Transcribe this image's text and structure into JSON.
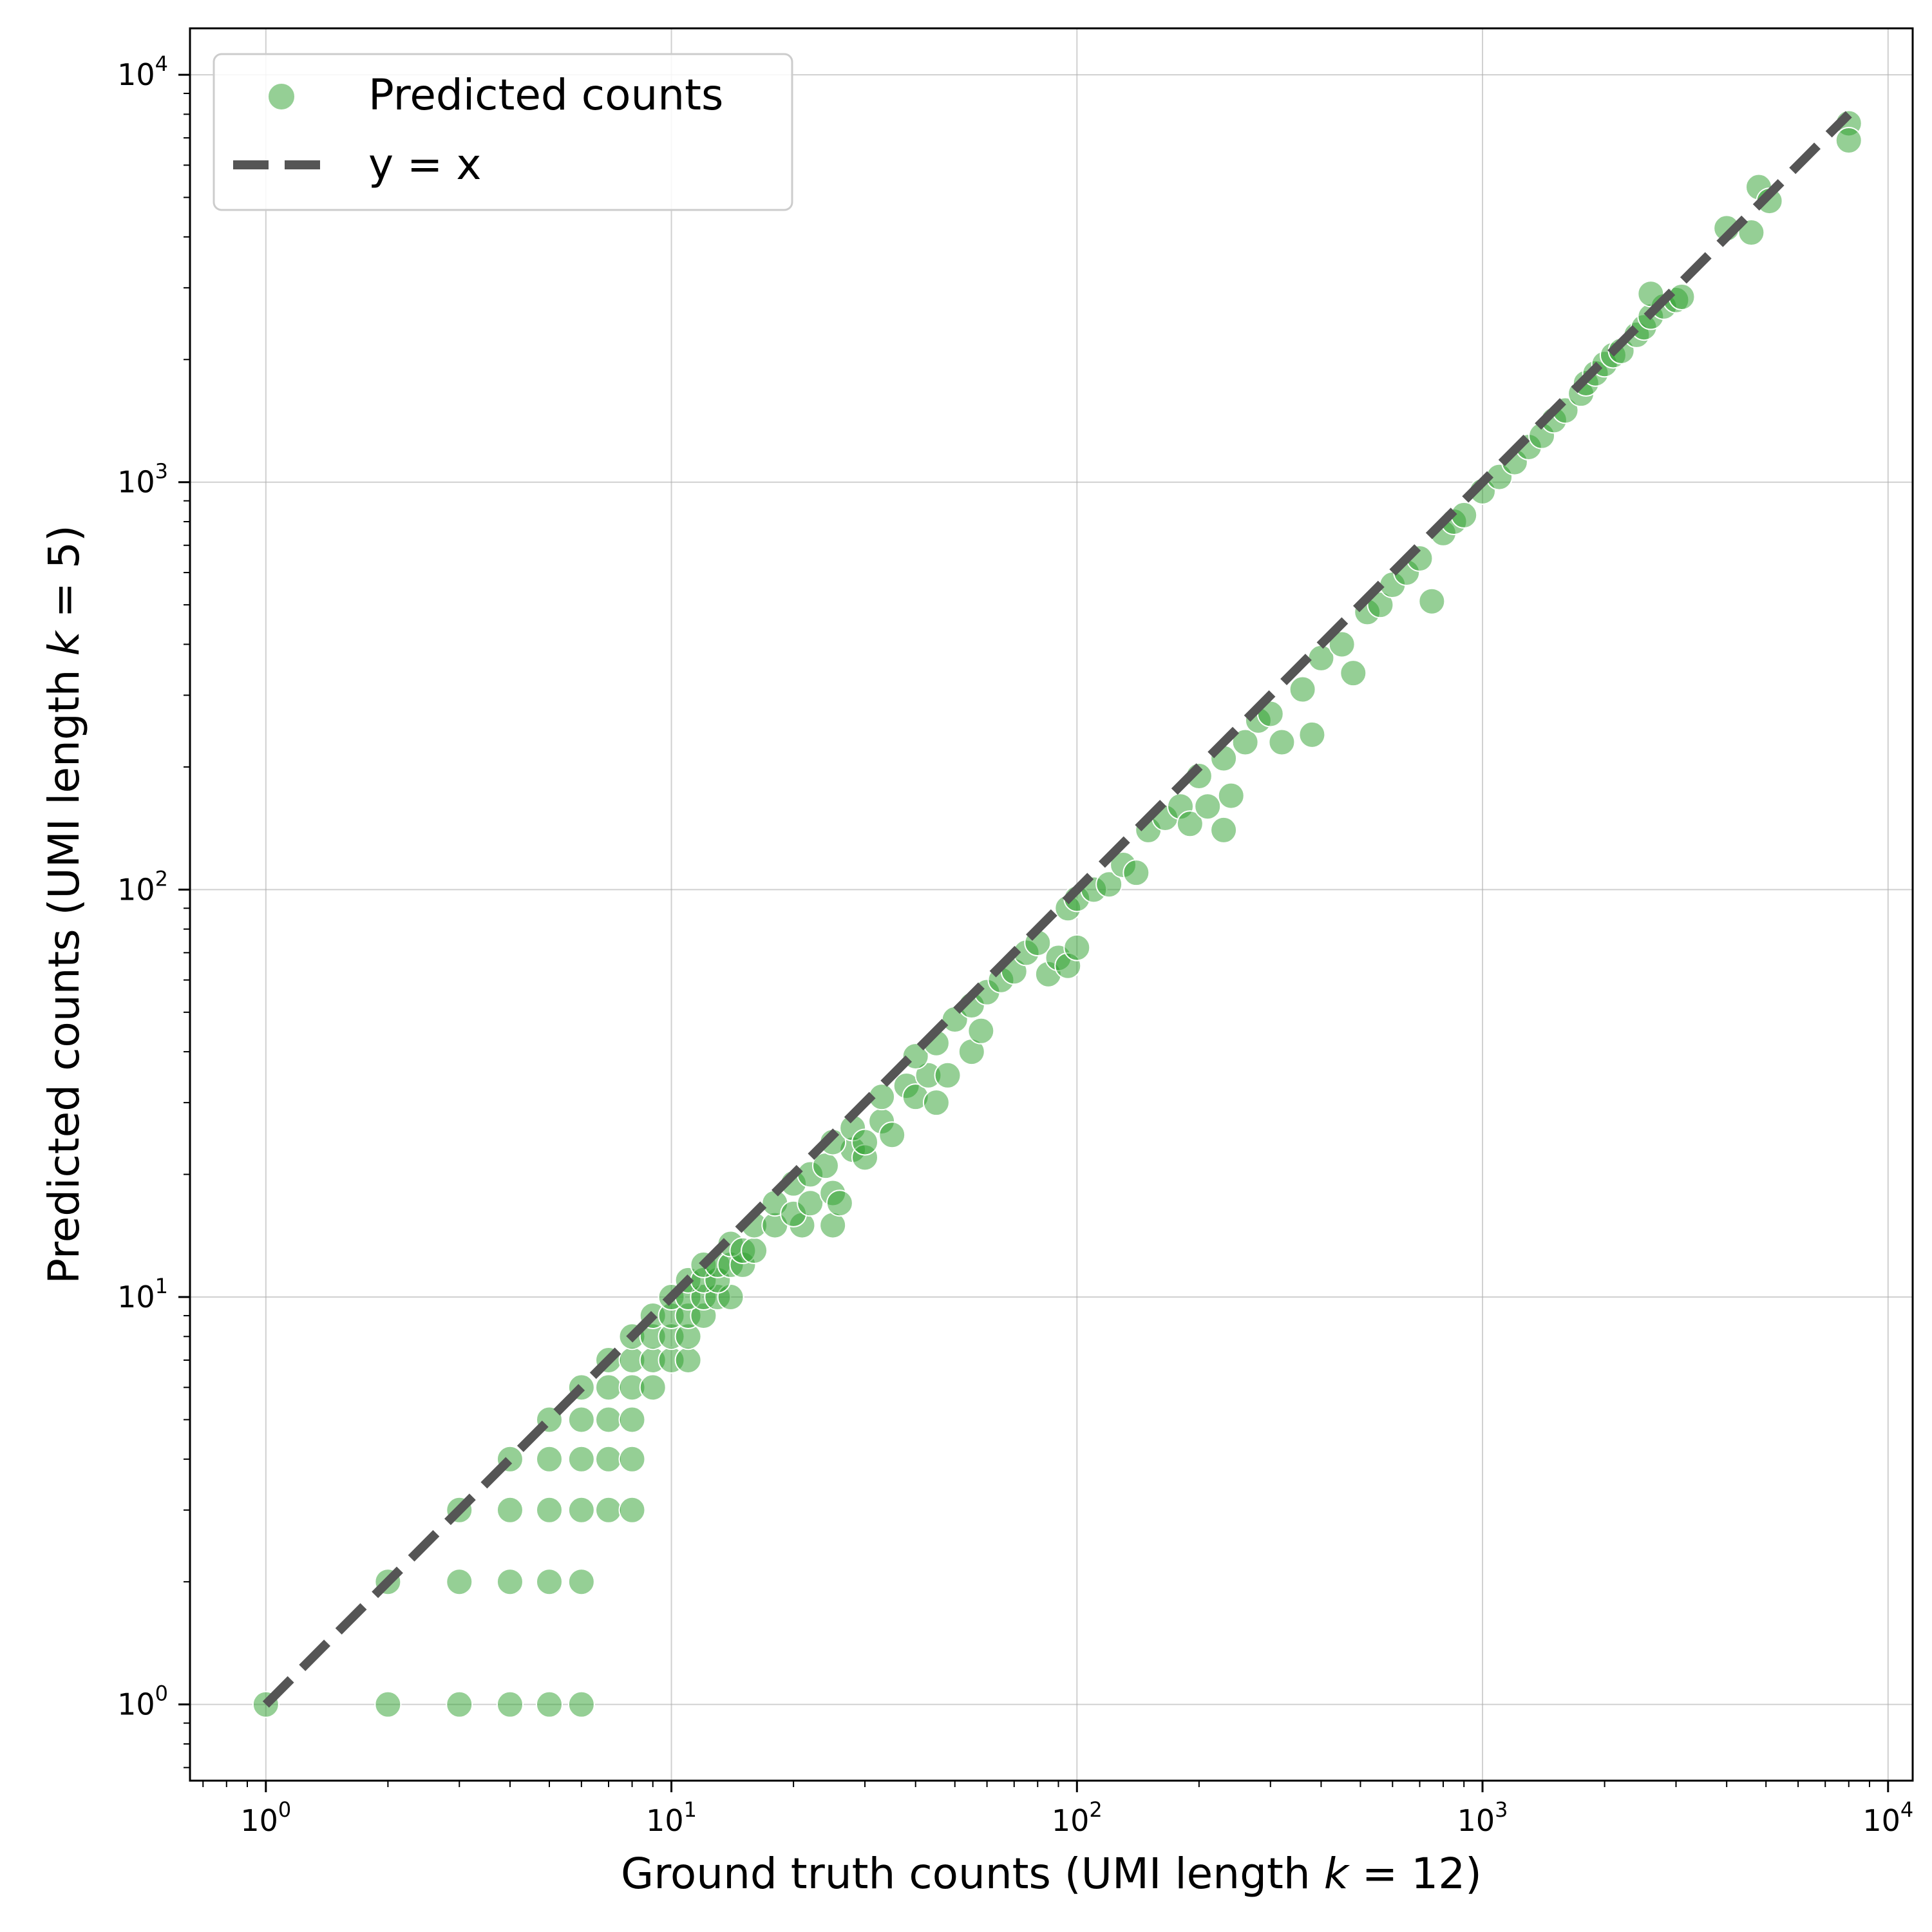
{
  "chart_data": {
    "type": "scatter",
    "title": "",
    "xlabel_prefix": "Ground truth counts (UMI length ",
    "xlabel_var": "k",
    "xlabel_suffix": " = 12)",
    "ylabel_prefix": "Predicted counts (UMI length ",
    "ylabel_var": "k",
    "ylabel_suffix": " = 5)",
    "x_scale": "log",
    "y_scale": "log",
    "xlim": [
      0.65,
      11500
    ],
    "ylim": [
      0.65,
      13000
    ],
    "grid": true,
    "legend_position": "top-left",
    "colors": {
      "points": "#2ca02c",
      "line": "#555555",
      "grid": "#b0b0b0"
    },
    "x_ticks": [
      {
        "base": "10",
        "exp": "0"
      },
      {
        "base": "10",
        "exp": "1"
      },
      {
        "base": "10",
        "exp": "2"
      },
      {
        "base": "10",
        "exp": "3"
      },
      {
        "base": "10",
        "exp": "4"
      }
    ],
    "y_ticks": [
      {
        "base": "10",
        "exp": "0"
      },
      {
        "base": "10",
        "exp": "1"
      },
      {
        "base": "10",
        "exp": "2"
      },
      {
        "base": "10",
        "exp": "3"
      },
      {
        "base": "10",
        "exp": "4"
      }
    ],
    "series": [
      {
        "name": "Predicted counts",
        "kind": "scatter",
        "points": [
          [
            1,
            1
          ],
          [
            2,
            1
          ],
          [
            3,
            1
          ],
          [
            4,
            1
          ],
          [
            5,
            1
          ],
          [
            6,
            1
          ],
          [
            2,
            2
          ],
          [
            3,
            2
          ],
          [
            4,
            2
          ],
          [
            5,
            2
          ],
          [
            6,
            2
          ],
          [
            3,
            3
          ],
          [
            4,
            3
          ],
          [
            5,
            3
          ],
          [
            6,
            3
          ],
          [
            7,
            3
          ],
          [
            8,
            3
          ],
          [
            4,
            4
          ],
          [
            5,
            4
          ],
          [
            6,
            4
          ],
          [
            7,
            4
          ],
          [
            8,
            4
          ],
          [
            5,
            5
          ],
          [
            6,
            5
          ],
          [
            7,
            5
          ],
          [
            8,
            5
          ],
          [
            6,
            6
          ],
          [
            7,
            6
          ],
          [
            8,
            6
          ],
          [
            9,
            6
          ],
          [
            7,
            7
          ],
          [
            8,
            7
          ],
          [
            9,
            7
          ],
          [
            10,
            7
          ],
          [
            11,
            7
          ],
          [
            8,
            8
          ],
          [
            9,
            8
          ],
          [
            10,
            8
          ],
          [
            11,
            8
          ],
          [
            9,
            9
          ],
          [
            10,
            9
          ],
          [
            11,
            9
          ],
          [
            12,
            9
          ],
          [
            10,
            10
          ],
          [
            11,
            10
          ],
          [
            12,
            10
          ],
          [
            13,
            10
          ],
          [
            14,
            10
          ],
          [
            11,
            11
          ],
          [
            12,
            11
          ],
          [
            13,
            11
          ],
          [
            12,
            12
          ],
          [
            13,
            12
          ],
          [
            14,
            12
          ],
          [
            15,
            12
          ],
          [
            14,
            13.5
          ],
          [
            15,
            13
          ],
          [
            16,
            13
          ],
          [
            16,
            15
          ],
          [
            18,
            15
          ],
          [
            21,
            15
          ],
          [
            25,
            15
          ],
          [
            18,
            17
          ],
          [
            20,
            16
          ],
          [
            22,
            17
          ],
          [
            25,
            18
          ],
          [
            26,
            17
          ],
          [
            20,
            19
          ],
          [
            22,
            20
          ],
          [
            24,
            21
          ],
          [
            28,
            23
          ],
          [
            30,
            22
          ],
          [
            25,
            24
          ],
          [
            28,
            26
          ],
          [
            30,
            24
          ],
          [
            33,
            27
          ],
          [
            35,
            25
          ],
          [
            33,
            31
          ],
          [
            38,
            33
          ],
          [
            40,
            31
          ],
          [
            45,
            30
          ],
          [
            43,
            35
          ],
          [
            40,
            39
          ],
          [
            45,
            42
          ],
          [
            48,
            35
          ],
          [
            55,
            40
          ],
          [
            58,
            45
          ],
          [
            50,
            48
          ],
          [
            55,
            52
          ],
          [
            60,
            56
          ],
          [
            65,
            60
          ],
          [
            70,
            63
          ],
          [
            75,
            70
          ],
          [
            80,
            74
          ],
          [
            85,
            62
          ],
          [
            90,
            68
          ],
          [
            95,
            65
          ],
          [
            100,
            72
          ],
          [
            95,
            90
          ],
          [
            100,
            95
          ],
          [
            110,
            100
          ],
          [
            120,
            103
          ],
          [
            130,
            115
          ],
          [
            140,
            110
          ],
          [
            150,
            140
          ],
          [
            165,
            150
          ],
          [
            180,
            160
          ],
          [
            190,
            145
          ],
          [
            210,
            160
          ],
          [
            200,
            190
          ],
          [
            230,
            210
          ],
          [
            240,
            170
          ],
          [
            230,
            140
          ],
          [
            260,
            230
          ],
          [
            280,
            260
          ],
          [
            300,
            270
          ],
          [
            320,
            230
          ],
          [
            360,
            310
          ],
          [
            380,
            240
          ],
          [
            400,
            370
          ],
          [
            450,
            400
          ],
          [
            480,
            340
          ],
          [
            520,
            480
          ],
          [
            560,
            500
          ],
          [
            600,
            560
          ],
          [
            650,
            600
          ],
          [
            700,
            650
          ],
          [
            750,
            510
          ],
          [
            800,
            750
          ],
          [
            850,
            800
          ],
          [
            900,
            830
          ],
          [
            1000,
            950
          ],
          [
            1100,
            1030
          ],
          [
            1200,
            1120
          ],
          [
            1300,
            1220
          ],
          [
            1400,
            1300
          ],
          [
            1500,
            1420
          ],
          [
            1600,
            1500
          ],
          [
            1750,
            1650
          ],
          [
            1800,
            1750
          ],
          [
            1900,
            1850
          ],
          [
            2000,
            1950
          ],
          [
            2100,
            2050
          ],
          [
            2200,
            2100
          ],
          [
            2400,
            2300
          ],
          [
            2500,
            2400
          ],
          [
            2600,
            2550
          ],
          [
            2800,
            2700
          ],
          [
            3000,
            2800
          ],
          [
            2600,
            2900
          ],
          [
            3100,
            2850
          ],
          [
            4000,
            4200
          ],
          [
            4600,
            4100
          ],
          [
            4800,
            5300
          ],
          [
            5100,
            4900
          ],
          [
            8000,
            7600
          ],
          [
            8000,
            6900
          ]
        ]
      },
      {
        "name": "y = x",
        "kind": "line",
        "x": [
          1,
          8000
        ],
        "y": [
          1,
          8000
        ]
      }
    ]
  }
}
